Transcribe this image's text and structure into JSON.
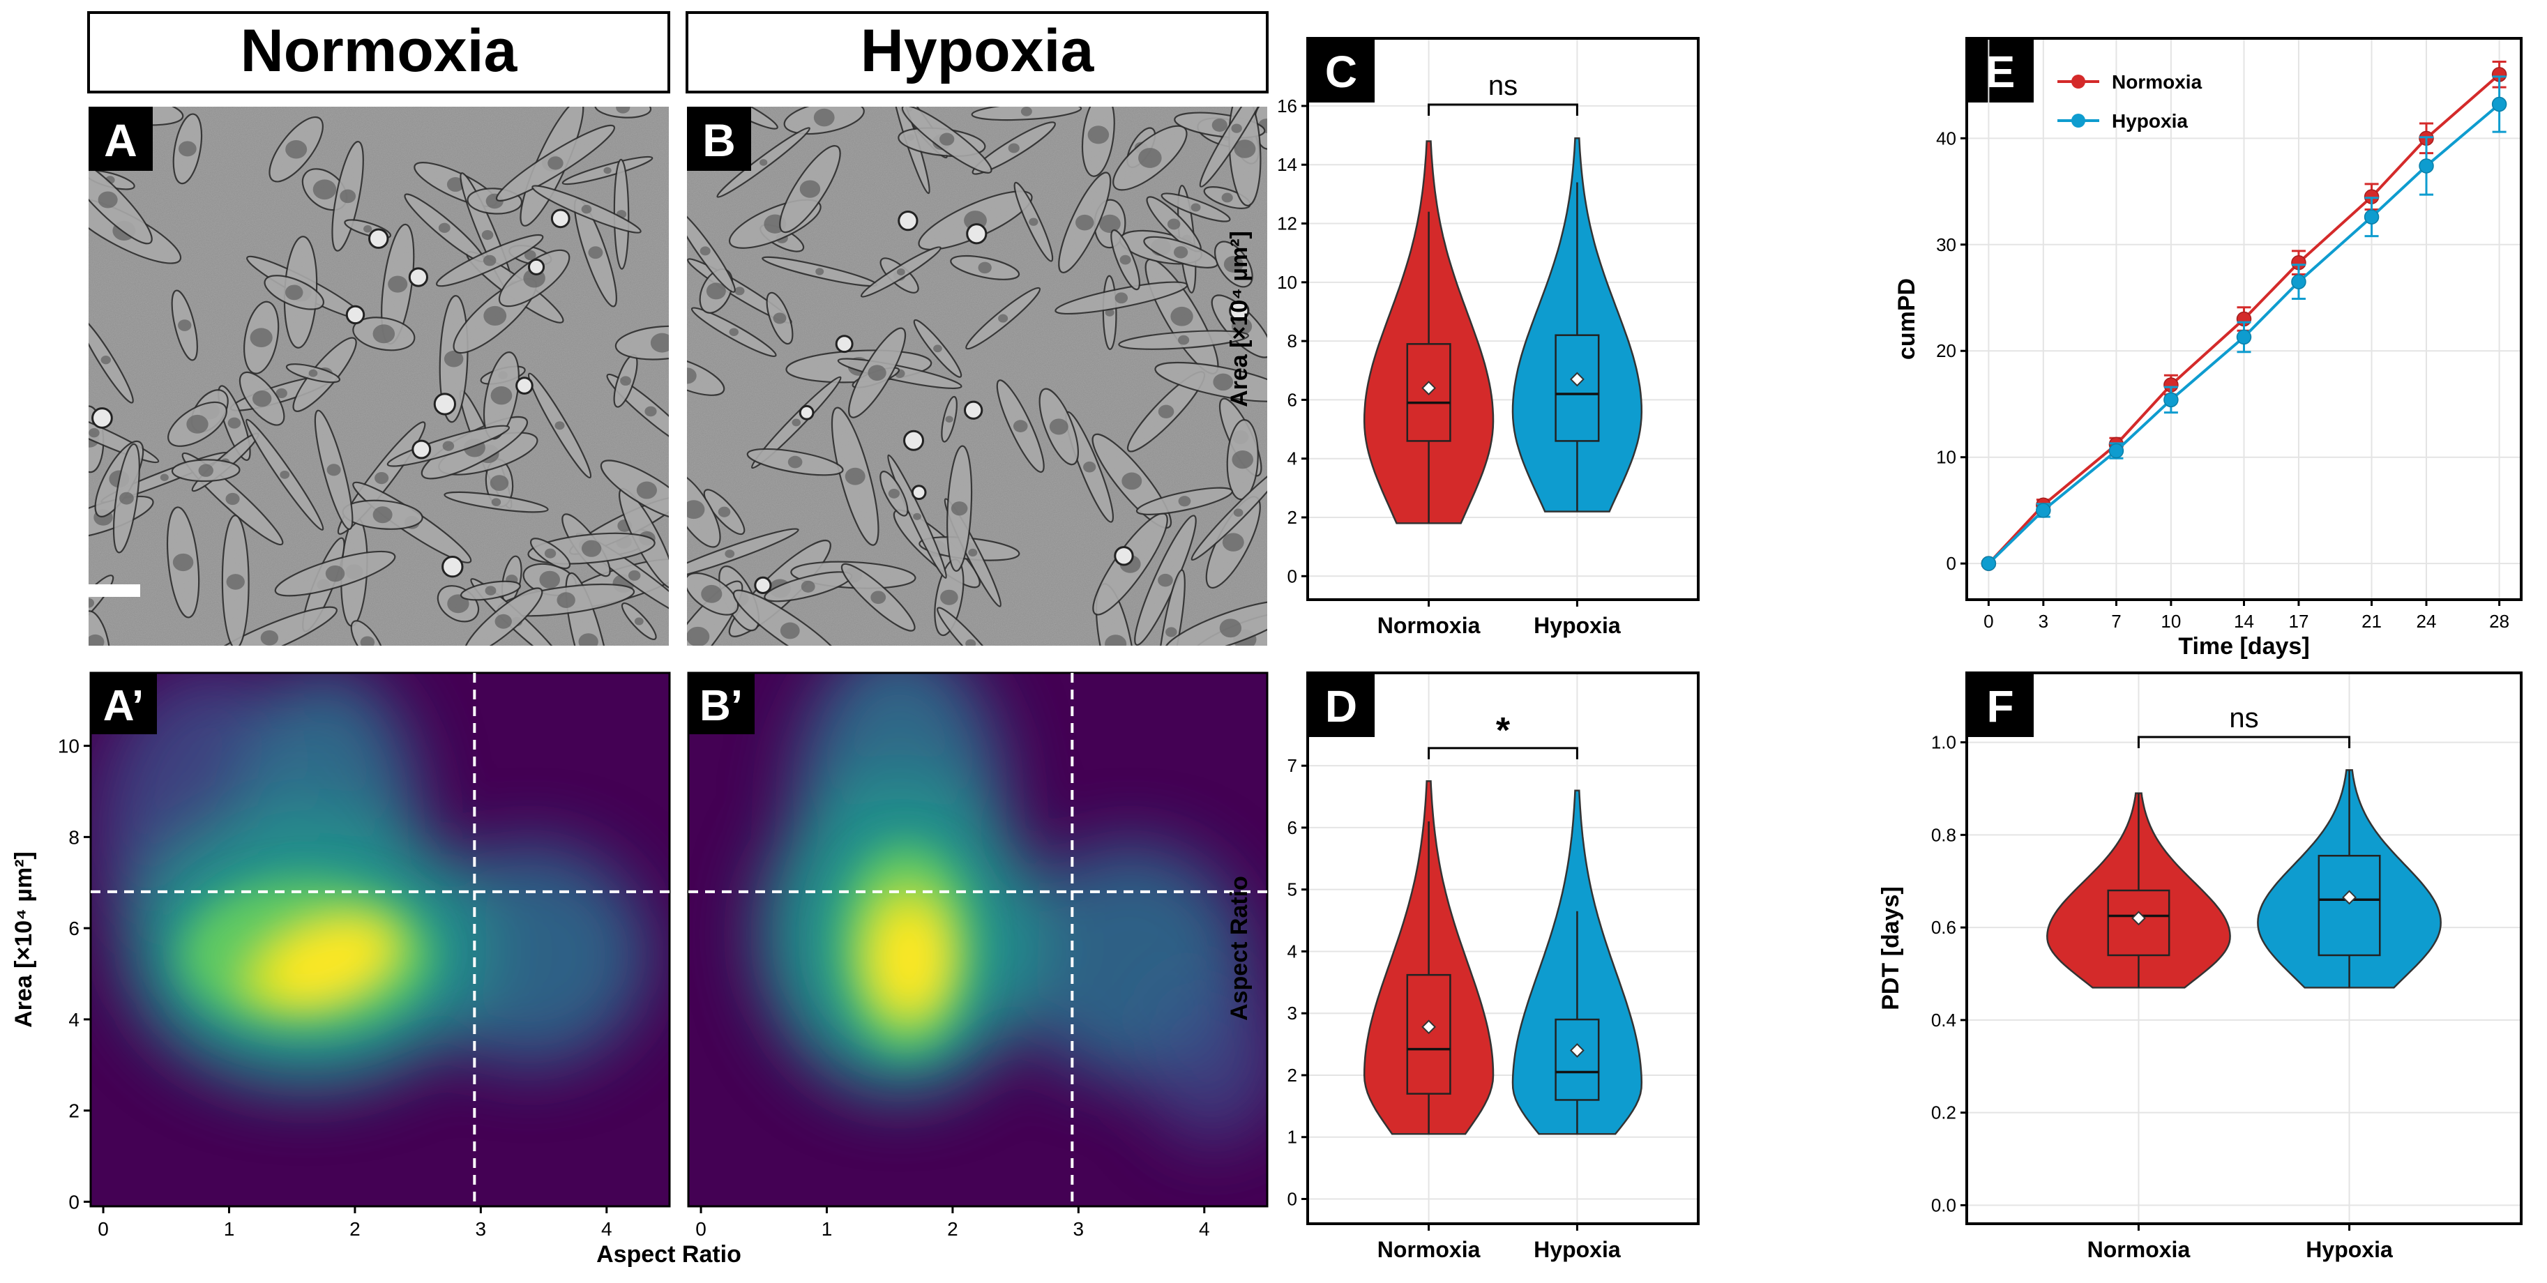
{
  "colors": {
    "normoxia": "#d42a2a",
    "hypoxia": "#0e9ccf",
    "grid": "#e4e4e4",
    "density_low": "#440154",
    "density_high": "#fde725"
  },
  "headers": {
    "a": "Normoxia",
    "b": "Hypoxia"
  },
  "panel_letters": {
    "a": "A",
    "b": "B",
    "a_prime": "A’",
    "b_prime": "B’",
    "c": "C",
    "d": "D",
    "e": "E",
    "f": "F"
  },
  "significance": {
    "c": "ns",
    "d": "*",
    "f": "ns"
  },
  "chart_data": [
    {
      "panel": "A’/B’",
      "type": "heatmap",
      "xlabel": "Aspect Ratio",
      "ylabel": "Area [×10⁴ µm²]",
      "xlim": [
        -0.1,
        4.5
      ],
      "ylim": [
        -0.1,
        11.6
      ],
      "xticks": [
        0,
        1,
        2,
        3,
        4
      ],
      "yticks": [
        0,
        2,
        4,
        6,
        8,
        10
      ],
      "threshold_lines": {
        "x": 2.95,
        "y": 6.8
      },
      "peak": {
        "normoxia": {
          "x": 1.9,
          "y": 5.4
        },
        "hypoxia": {
          "x": 1.75,
          "y": 5.4
        }
      }
    },
    {
      "panel": "C",
      "type": "violin",
      "categories": [
        "Normoxia",
        "Hypoxia"
      ],
      "ylabel": "Area [×10⁴ µm²]",
      "ylim": [
        -0.8,
        18.3
      ],
      "yticks": [
        0,
        2,
        4,
        6,
        8,
        10,
        12,
        14,
        16
      ],
      "series": [
        {
          "name": "Normoxia",
          "min": 1.8,
          "max": 14.8,
          "q1": 4.6,
          "median": 5.9,
          "q3": 7.9,
          "mean": 6.4,
          "whisker_low": 1.8,
          "whisker_high": 12.4,
          "mode": 5.3
        },
        {
          "name": "Hypoxia",
          "min": 2.2,
          "max": 14.9,
          "q1": 4.6,
          "median": 6.2,
          "q3": 8.2,
          "mean": 6.7,
          "whisker_low": 2.2,
          "whisker_high": 13.4,
          "mode": 5.6
        }
      ]
    },
    {
      "panel": "D",
      "type": "violin",
      "categories": [
        "Normoxia",
        "Hypoxia"
      ],
      "ylabel": "Aspect Ratio",
      "ylim": [
        -0.4,
        8.5
      ],
      "yticks": [
        0,
        1,
        2,
        3,
        4,
        5,
        6,
        7
      ],
      "series": [
        {
          "name": "Normoxia",
          "min": 1.05,
          "max": 6.75,
          "q1": 1.7,
          "median": 2.42,
          "q3": 3.62,
          "mean": 2.78,
          "whisker_low": 1.05,
          "whisker_high": 6.1,
          "mode": 2.0
        },
        {
          "name": "Hypoxia",
          "min": 1.05,
          "max": 6.6,
          "q1": 1.6,
          "median": 2.05,
          "q3": 2.9,
          "mean": 2.4,
          "whisker_low": 1.05,
          "whisker_high": 4.65,
          "mode": 1.85
        }
      ]
    },
    {
      "panel": "E",
      "type": "line",
      "xlabel": "Time [days]",
      "ylabel": "cumPD",
      "xlim": [
        -1.2,
        29.2
      ],
      "ylim": [
        -3.4,
        49.4
      ],
      "xticks": [
        0,
        3,
        7,
        10,
        14,
        17,
        21,
        24,
        28
      ],
      "yticks": [
        0,
        10,
        20,
        30,
        40
      ],
      "legend": "top-left",
      "x": [
        0,
        3,
        7,
        10,
        14,
        17,
        21,
        24,
        28
      ],
      "series": [
        {
          "name": "Normoxia",
          "values": [
            0,
            5.5,
            11.2,
            16.8,
            23.0,
            28.3,
            34.5,
            40.0,
            46.0
          ],
          "err": [
            0.2,
            0.5,
            0.6,
            0.9,
            1.1,
            1.1,
            1.2,
            1.4,
            1.2
          ]
        },
        {
          "name": "Hypoxia",
          "values": [
            0,
            5.0,
            10.6,
            15.4,
            21.3,
            26.5,
            32.6,
            37.4,
            43.2
          ],
          "err": [
            0.2,
            0.6,
            0.7,
            1.2,
            1.4,
            1.6,
            1.8,
            2.7,
            2.6
          ]
        }
      ]
    },
    {
      "panel": "F",
      "type": "violin",
      "categories": [
        "Normoxia",
        "Hypoxia"
      ],
      "ylabel": "PDT [days]",
      "ylim": [
        -0.04,
        1.15
      ],
      "yticks": [
        0.0,
        0.2,
        0.4,
        0.6,
        0.8,
        1.0
      ],
      "series": [
        {
          "name": "Normoxia",
          "min": 0.47,
          "max": 0.89,
          "q1": 0.54,
          "median": 0.625,
          "q3": 0.68,
          "mean": 0.62,
          "whisker_low": 0.47,
          "whisker_high": 0.89,
          "mode": 0.58
        },
        {
          "name": "Hypoxia",
          "min": 0.47,
          "max": 0.94,
          "q1": 0.54,
          "median": 0.66,
          "q3": 0.755,
          "mean": 0.665,
          "whisker_low": 0.47,
          "whisker_high": 0.94,
          "mode": 0.61
        }
      ]
    }
  ]
}
